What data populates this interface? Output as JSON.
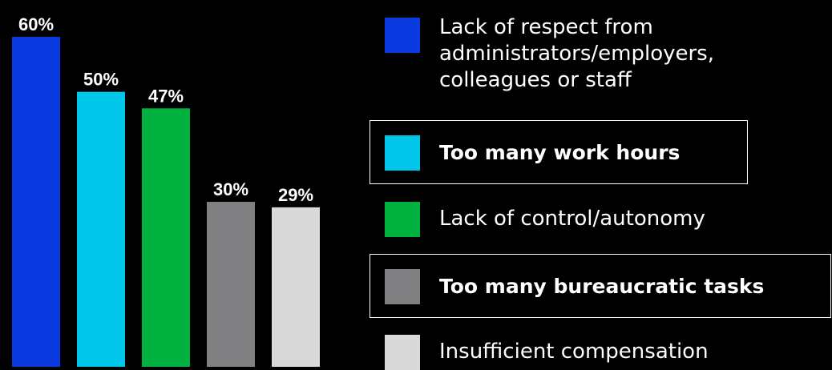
{
  "chart_data": {
    "type": "bar",
    "categories": [
      "Lack of respect from administrators/employers, colleagues or staff",
      "Too many work hours",
      "Lack of control/autonomy",
      "Too many bureaucratic tasks",
      "Insufficient compensation"
    ],
    "values": [
      60,
      50,
      47,
      30,
      29
    ],
    "value_labels": [
      "60%",
      "50%",
      "47%",
      "30%",
      "29%"
    ],
    "colors": [
      "#0a3be0",
      "#00c6ea",
      "#00b140",
      "#808083",
      "#d9d9da"
    ],
    "ylim": [
      0,
      60
    ],
    "grid": false,
    "legend_position": "right"
  },
  "legend": {
    "items": [
      {
        "label": "Lack of respect from\nadministrators/employers,\ncolleagues or staff",
        "color": "#0a3be0",
        "highlighted": false
      },
      {
        "label": "Too many work hours",
        "color": "#00c6ea",
        "highlighted": true
      },
      {
        "label": "Lack of control/autonomy",
        "color": "#00b140",
        "highlighted": false
      },
      {
        "label": "Too many bureaucratic tasks",
        "color": "#808083",
        "highlighted": true
      },
      {
        "label": "Insufficient compensation",
        "color": "#d9d9da",
        "highlighted": false
      }
    ]
  }
}
